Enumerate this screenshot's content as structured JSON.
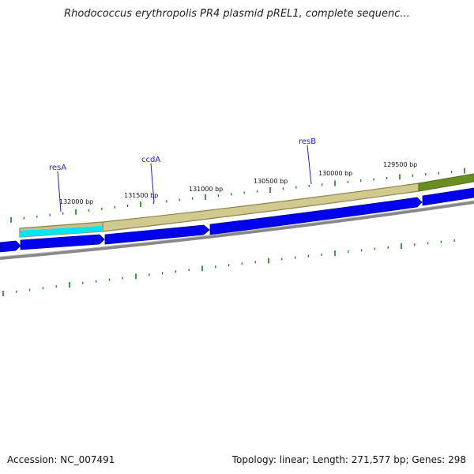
{
  "title": "Rhodococcus erythropolis PR4 plasmid pREL1, complete sequenc...",
  "footer": {
    "accession": "Accession: NC_007491",
    "summary": "Topology: linear; Length: 271,577 bp; Genes: 298"
  },
  "tick_labels": [
    "132000 bp",
    "131500 bp",
    "131000 bp",
    "130500 bp",
    "130000 bp",
    "129500 bp"
  ],
  "gene_labels": [
    "resA",
    "ccdA",
    "resB"
  ],
  "colors": {
    "gene_strand": "#0000ee",
    "gene_highlight": "#00e5ee",
    "feature_band": "#c9c08a",
    "feature_band_dark": "#6b8e23",
    "backbone": "#888888",
    "ticks": "#1a7a1a",
    "labels": "#1f1fbf"
  }
}
